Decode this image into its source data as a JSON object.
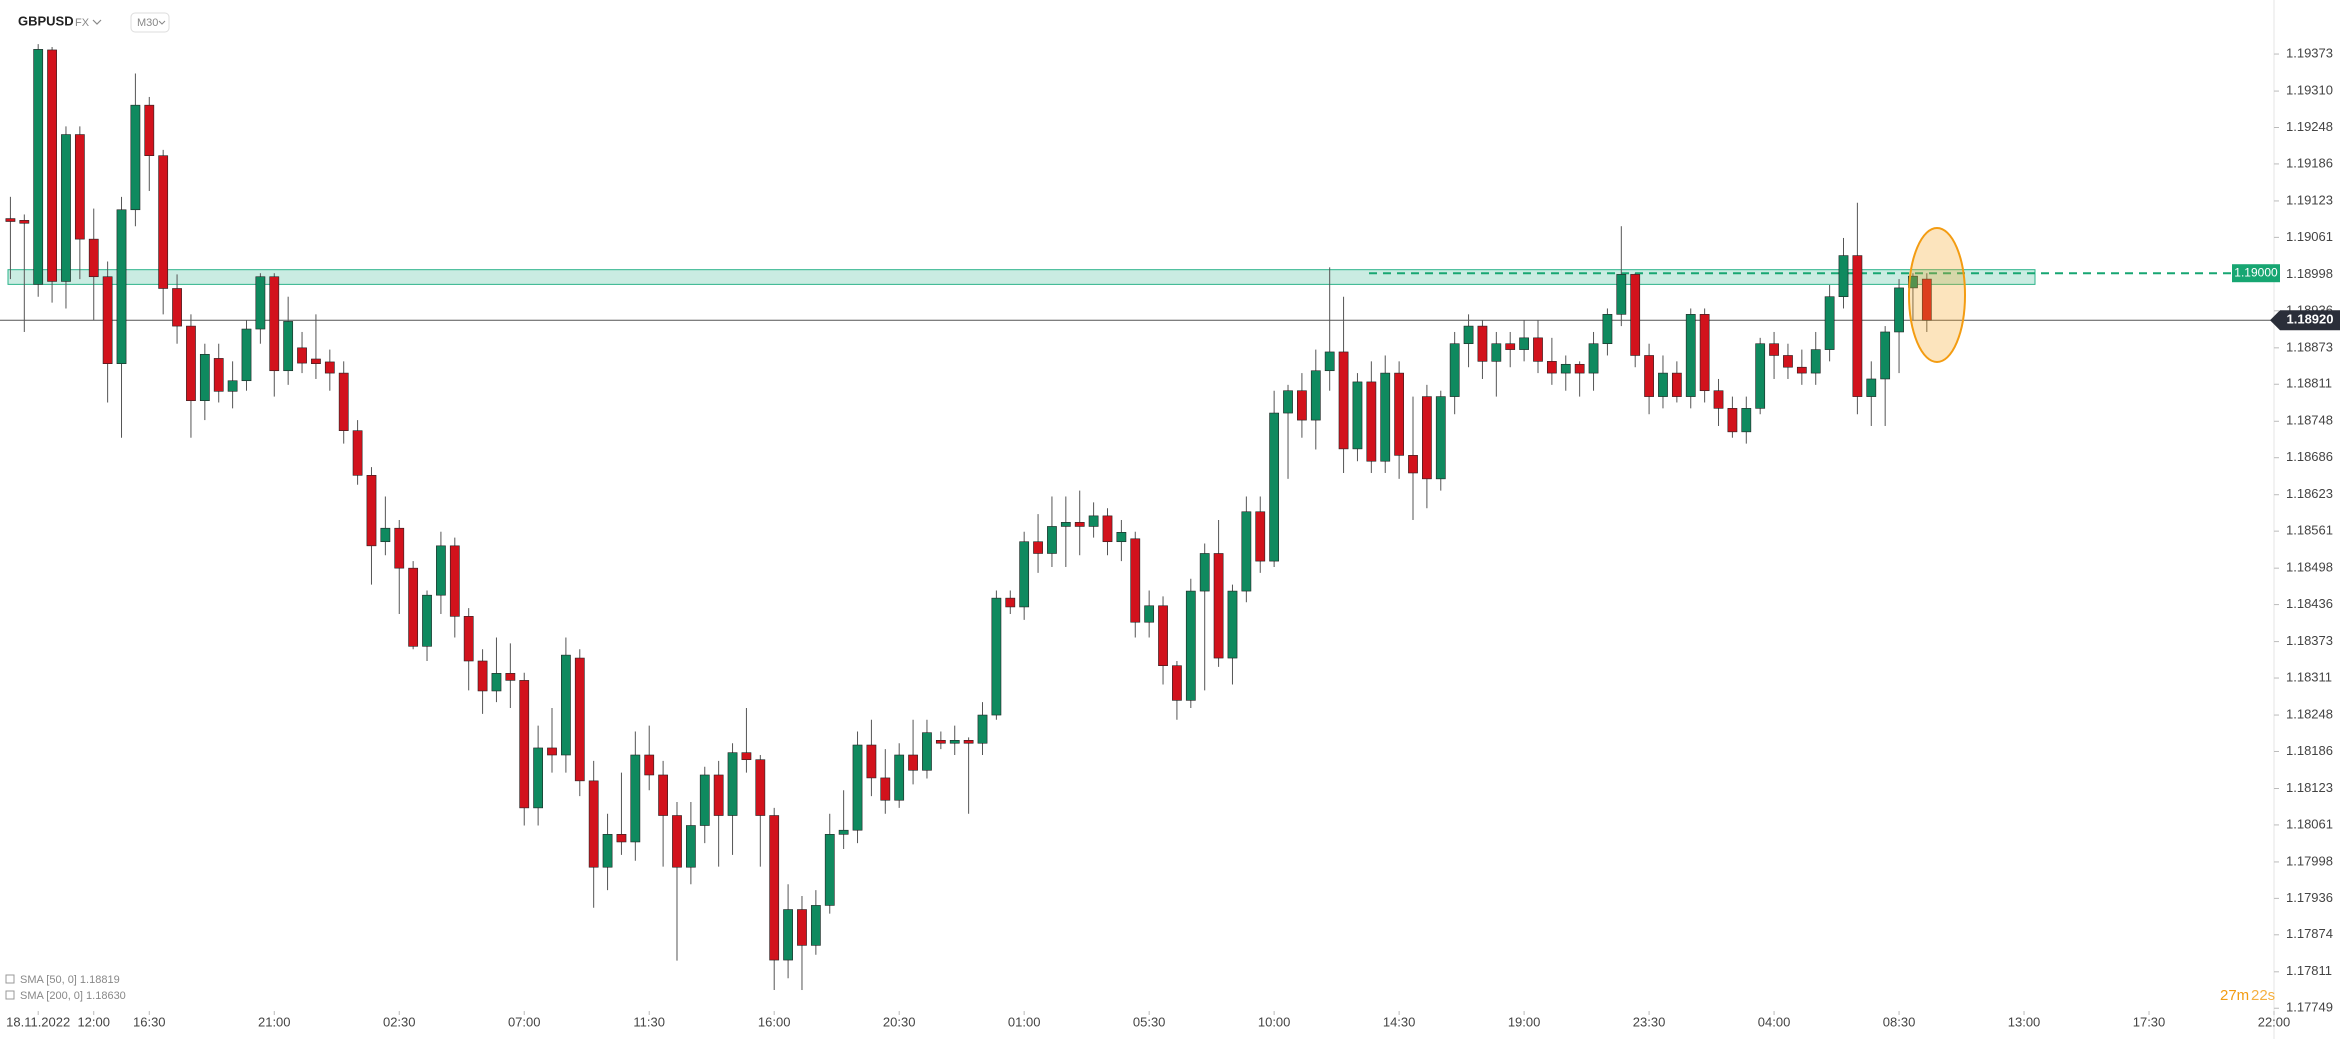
{
  "chart_data": {
    "type": "candlestick",
    "symbol": "GBPUSD",
    "market": "FX",
    "timeframe": "M30",
    "up_color": "#0f8a5f",
    "down_color": "#d2121c",
    "wick_color": "#555555",
    "ylim": [
      1.17746,
      1.19465
    ],
    "xlim": [
      -0.75,
      163
    ],
    "yticks": [
      {
        "value": 1.19373,
        "label": "1.19373"
      },
      {
        "value": 1.1931,
        "label": "1.19310"
      },
      {
        "value": 1.19248,
        "label": "1.19248"
      },
      {
        "value": 1.19186,
        "label": "1.19186"
      },
      {
        "value": 1.19123,
        "label": "1.19123"
      },
      {
        "value": 1.19061,
        "label": "1.19061"
      },
      {
        "value": 1.18998,
        "label": "1.18998"
      },
      {
        "value": 1.18936,
        "label": "1.18936"
      },
      {
        "value": 1.18873,
        "label": "1.18873"
      },
      {
        "value": 1.18811,
        "label": "1.18811"
      },
      {
        "value": 1.18748,
        "label": "1.18748"
      },
      {
        "value": 1.18686,
        "label": "1.18686"
      },
      {
        "value": 1.18623,
        "label": "1.18623"
      },
      {
        "value": 1.18561,
        "label": "1.18561"
      },
      {
        "value": 1.18498,
        "label": "1.18498"
      },
      {
        "value": 1.18436,
        "label": "1.18436"
      },
      {
        "value": 1.18373,
        "label": "1.18373"
      },
      {
        "value": 1.18311,
        "label": "1.18311"
      },
      {
        "value": 1.18248,
        "label": "1.18248"
      },
      {
        "value": 1.18186,
        "label": "1.18186"
      },
      {
        "value": 1.18123,
        "label": "1.18123"
      },
      {
        "value": 1.18061,
        "label": "1.18061"
      },
      {
        "value": 1.17998,
        "label": "1.17998"
      },
      {
        "value": 1.17936,
        "label": "1.17936"
      },
      {
        "value": 1.17874,
        "label": "1.17874"
      },
      {
        "value": 1.17811,
        "label": "1.17811"
      },
      {
        "value": 1.17749,
        "label": "1.17749"
      }
    ],
    "xticks": [
      {
        "value": 2,
        "label": "18.11.2022"
      },
      {
        "value": 6,
        "label": "12:00"
      },
      {
        "value": 10,
        "label": "16:30"
      },
      {
        "value": 19,
        "label": "21:00"
      },
      {
        "value": 28,
        "label": "02:30"
      },
      {
        "value": 37,
        "label": "07:00"
      },
      {
        "value": 46,
        "label": "11:30"
      },
      {
        "value": 55,
        "label": "16:00"
      },
      {
        "value": 64,
        "label": "20:30"
      },
      {
        "value": 73,
        "label": "01:00"
      },
      {
        "value": 82,
        "label": "05:30"
      },
      {
        "value": 91,
        "label": "10:00"
      },
      {
        "value": 100,
        "label": "14:30"
      },
      {
        "value": 109,
        "label": "19:00"
      },
      {
        "value": 118,
        "label": "23:30"
      },
      {
        "value": 127,
        "label": "04:00"
      },
      {
        "value": 136,
        "label": "08:30"
      },
      {
        "value": 145,
        "label": "13:00"
      },
      {
        "value": 154,
        "label": "17:30"
      },
      {
        "value": 163,
        "label": "22:00"
      }
    ],
    "zone": {
      "from": 1.18981,
      "to": 1.19006,
      "color": "#2bb38a"
    },
    "level": {
      "value": 1.19,
      "label": "1.19000",
      "color": "#17a672"
    },
    "current_price": {
      "value": 1.1892,
      "label": "1.18920"
    },
    "indicators": [
      "SMA [50, 0] 1.18819",
      "SMA [200, 0] 1.18630"
    ],
    "timer": {
      "minutes": "27m",
      "seconds": "22s"
    },
    "candles": [
      [
        1.19093,
        1.1913,
        1.1899,
        1.19088
      ],
      [
        1.1909,
        1.191,
        1.189,
        1.19085
      ],
      [
        1.18981,
        1.1939,
        1.1896,
        1.19381
      ],
      [
        1.1938,
        1.19385,
        1.1895,
        1.18986
      ],
      [
        1.18986,
        1.1925,
        1.1894,
        1.19236
      ],
      [
        1.19236,
        1.1925,
        1.1899,
        1.19058
      ],
      [
        1.19058,
        1.1911,
        1.1892,
        1.18994
      ],
      [
        1.18994,
        1.1902,
        1.1878,
        1.18846
      ],
      [
        1.18846,
        1.1913,
        1.1872,
        1.19108
      ],
      [
        1.19108,
        1.1934,
        1.1908,
        1.19286
      ],
      [
        1.19286,
        1.193,
        1.1914,
        1.192
      ],
      [
        1.192,
        1.1921,
        1.1893,
        1.18974
      ],
      [
        1.18974,
        1.18998,
        1.1888,
        1.1891
      ],
      [
        1.1891,
        1.1893,
        1.1872,
        1.18783
      ],
      [
        1.18783,
        1.1888,
        1.1875,
        1.18862
      ],
      [
        1.18855,
        1.1888,
        1.1878,
        1.18799
      ],
      [
        1.18799,
        1.1885,
        1.1877,
        1.18817
      ],
      [
        1.18817,
        1.1892,
        1.188,
        1.18905
      ],
      [
        1.18905,
        1.19,
        1.1888,
        1.18994
      ],
      [
        1.18994,
        1.19,
        1.1879,
        1.18834
      ],
      [
        1.18834,
        1.1896,
        1.1881,
        1.18918
      ],
      [
        1.18873,
        1.189,
        1.1883,
        1.18847
      ],
      [
        1.18854,
        1.1893,
        1.1882,
        1.18846
      ],
      [
        1.18849,
        1.1887,
        1.188,
        1.1883
      ],
      [
        1.1883,
        1.1885,
        1.1871,
        1.18732
      ],
      [
        1.18732,
        1.1875,
        1.1864,
        1.18656
      ],
      [
        1.18656,
        1.1867,
        1.1847,
        1.18536
      ],
      [
        1.18543,
        1.1862,
        1.1852,
        1.18566
      ],
      [
        1.18566,
        1.1858,
        1.1842,
        1.18498
      ],
      [
        1.18498,
        1.1851,
        1.1836,
        1.18365
      ],
      [
        1.18365,
        1.1846,
        1.1834,
        1.18452
      ],
      [
        1.18452,
        1.1856,
        1.1842,
        1.18536
      ],
      [
        1.18536,
        1.1855,
        1.1838,
        1.18416
      ],
      [
        1.18416,
        1.1843,
        1.1829,
        1.1834
      ],
      [
        1.1834,
        1.1836,
        1.1825,
        1.18289
      ],
      [
        1.18289,
        1.1838,
        1.1827,
        1.18319
      ],
      [
        1.18319,
        1.1837,
        1.1826,
        1.18307
      ],
      [
        1.18307,
        1.1832,
        1.1806,
        1.1809
      ],
      [
        1.1809,
        1.1823,
        1.1806,
        1.18192
      ],
      [
        1.18192,
        1.1826,
        1.1815,
        1.1818
      ],
      [
        1.1818,
        1.1838,
        1.1815,
        1.1835
      ],
      [
        1.18345,
        1.1836,
        1.1811,
        1.18136
      ],
      [
        1.18136,
        1.1817,
        1.1792,
        1.17989
      ],
      [
        1.17989,
        1.1808,
        1.1795,
        1.18045
      ],
      [
        1.18045,
        1.1815,
        1.1801,
        1.18032
      ],
      [
        1.18032,
        1.1822,
        1.18,
        1.1818
      ],
      [
        1.1818,
        1.1823,
        1.1812,
        1.18146
      ],
      [
        1.18146,
        1.1817,
        1.1799,
        1.18077
      ],
      [
        1.18077,
        1.181,
        1.1783,
        1.17989
      ],
      [
        1.17989,
        1.181,
        1.1796,
        1.1806
      ],
      [
        1.1806,
        1.1816,
        1.1803,
        1.18146
      ],
      [
        1.18146,
        1.1817,
        1.1799,
        1.18077
      ],
      [
        1.18077,
        1.182,
        1.1801,
        1.18184
      ],
      [
        1.18184,
        1.1826,
        1.1815,
        1.18172
      ],
      [
        1.18172,
        1.1818,
        1.1799,
        1.18077
      ],
      [
        1.18077,
        1.1809,
        1.1778,
        1.17831
      ],
      [
        1.17831,
        1.1796,
        1.178,
        1.17917
      ],
      [
        1.17917,
        1.1794,
        1.1778,
        1.17856
      ],
      [
        1.17856,
        1.1795,
        1.1784,
        1.17924
      ],
      [
        1.17924,
        1.1808,
        1.1791,
        1.18045
      ],
      [
        1.18045,
        1.1812,
        1.1802,
        1.18052
      ],
      [
        1.18052,
        1.1822,
        1.1803,
        1.18197
      ],
      [
        1.18197,
        1.1824,
        1.1811,
        1.18141
      ],
      [
        1.18141,
        1.1819,
        1.1808,
        1.18103
      ],
      [
        1.18103,
        1.182,
        1.1809,
        1.1818
      ],
      [
        1.1818,
        1.1824,
        1.1813,
        1.18154
      ],
      [
        1.18154,
        1.1824,
        1.1814,
        1.18218
      ],
      [
        1.18205,
        1.1822,
        1.1819,
        1.182
      ],
      [
        1.182,
        1.1823,
        1.1818,
        1.18205
      ],
      [
        1.18205,
        1.1821,
        1.1808,
        1.182
      ],
      [
        1.182,
        1.1827,
        1.1818,
        1.18248
      ],
      [
        1.18248,
        1.1846,
        1.1824,
        1.18447
      ],
      [
        1.18447,
        1.1846,
        1.1842,
        1.18432
      ],
      [
        1.18432,
        1.1856,
        1.1841,
        1.18543
      ],
      [
        1.18543,
        1.1859,
        1.1849,
        1.18523
      ],
      [
        1.18523,
        1.1862,
        1.185,
        1.18569
      ],
      [
        1.18569,
        1.1862,
        1.185,
        1.18576
      ],
      [
        1.18576,
        1.1863,
        1.1852,
        1.18569
      ],
      [
        1.18569,
        1.1861,
        1.1855,
        1.18587
      ],
      [
        1.18587,
        1.186,
        1.1852,
        1.18543
      ],
      [
        1.18543,
        1.1858,
        1.1851,
        1.18559
      ],
      [
        1.18548,
        1.1856,
        1.1838,
        1.18406
      ],
      [
        1.18406,
        1.1846,
        1.1838,
        1.18434
      ],
      [
        1.18434,
        1.1845,
        1.183,
        1.18332
      ],
      [
        1.18332,
        1.1834,
        1.1824,
        1.18273
      ],
      [
        1.18273,
        1.1848,
        1.1826,
        1.18459
      ],
      [
        1.18459,
        1.1854,
        1.1829,
        1.18523
      ],
      [
        1.18523,
        1.1858,
        1.1833,
        1.18345
      ],
      [
        1.18345,
        1.1847,
        1.183,
        1.18459
      ],
      [
        1.18459,
        1.1862,
        1.1844,
        1.18594
      ],
      [
        1.18594,
        1.1862,
        1.1849,
        1.1851
      ],
      [
        1.1851,
        1.188,
        1.185,
        1.18762
      ],
      [
        1.18762,
        1.1881,
        1.1865,
        1.188
      ],
      [
        1.188,
        1.1883,
        1.1872,
        1.1875
      ],
      [
        1.1875,
        1.1887,
        1.187,
        1.18834
      ],
      [
        1.18834,
        1.1901,
        1.188,
        1.18866
      ],
      [
        1.18866,
        1.1896,
        1.1866,
        1.18701
      ],
      [
        1.18701,
        1.1883,
        1.1868,
        1.18815
      ],
      [
        1.18815,
        1.1885,
        1.1866,
        1.1868
      ],
      [
        1.1868,
        1.1886,
        1.1866,
        1.1883
      ],
      [
        1.1883,
        1.1885,
        1.1865,
        1.1869
      ],
      [
        1.1869,
        1.1879,
        1.1858,
        1.1866
      ],
      [
        1.1879,
        1.1881,
        1.186,
        1.1865
      ],
      [
        1.1865,
        1.188,
        1.1863,
        1.1879
      ],
      [
        1.1879,
        1.189,
        1.1876,
        1.1888
      ],
      [
        1.1888,
        1.1893,
        1.1884,
        1.1891
      ],
      [
        1.1891,
        1.1892,
        1.1882,
        1.1885
      ],
      [
        1.1885,
        1.189,
        1.1879,
        1.1888
      ],
      [
        1.1888,
        1.189,
        1.1884,
        1.1887
      ],
      [
        1.1887,
        1.1892,
        1.1885,
        1.1889
      ],
      [
        1.1889,
        1.1892,
        1.1883,
        1.1885
      ],
      [
        1.1885,
        1.1889,
        1.1881,
        1.1883
      ],
      [
        1.1883,
        1.1886,
        1.188,
        1.18845
      ],
      [
        1.18845,
        1.1885,
        1.1879,
        1.1883
      ],
      [
        1.1883,
        1.189,
        1.188,
        1.1888
      ],
      [
        1.1888,
        1.1894,
        1.1886,
        1.1893
      ],
      [
        1.1893,
        1.1908,
        1.1891,
        1.18998
      ],
      [
        1.18998,
        1.19,
        1.1884,
        1.1886
      ],
      [
        1.1886,
        1.1888,
        1.1876,
        1.1879
      ],
      [
        1.1879,
        1.1886,
        1.1877,
        1.1883
      ],
      [
        1.1883,
        1.1885,
        1.1878,
        1.1879
      ],
      [
        1.1879,
        1.1894,
        1.1877,
        1.1893
      ],
      [
        1.1893,
        1.1894,
        1.1878,
        1.188
      ],
      [
        1.188,
        1.1882,
        1.1874,
        1.1877
      ],
      [
        1.1877,
        1.1879,
        1.1872,
        1.1873
      ],
      [
        1.1873,
        1.1879,
        1.1871,
        1.1877
      ],
      [
        1.1877,
        1.1889,
        1.1876,
        1.1888
      ],
      [
        1.1888,
        1.189,
        1.1882,
        1.1886
      ],
      [
        1.1886,
        1.1888,
        1.1882,
        1.1884
      ],
      [
        1.1884,
        1.1887,
        1.1881,
        1.1883
      ],
      [
        1.1883,
        1.189,
        1.1881,
        1.1887
      ],
      [
        1.1887,
        1.1898,
        1.1885,
        1.1896
      ],
      [
        1.1896,
        1.1906,
        1.1894,
        1.1903
      ],
      [
        1.1903,
        1.1912,
        1.1876,
        1.1879
      ],
      [
        1.1879,
        1.1885,
        1.1874,
        1.1882
      ],
      [
        1.1882,
        1.1891,
        1.1874,
        1.189
      ],
      [
        1.189,
        1.1899,
        1.1883,
        1.18975
      ],
      [
        1.18975,
        1.19,
        1.1892,
        1.18995
      ],
      [
        1.1899,
        1.19,
        1.189,
        1.1892
      ]
    ]
  }
}
